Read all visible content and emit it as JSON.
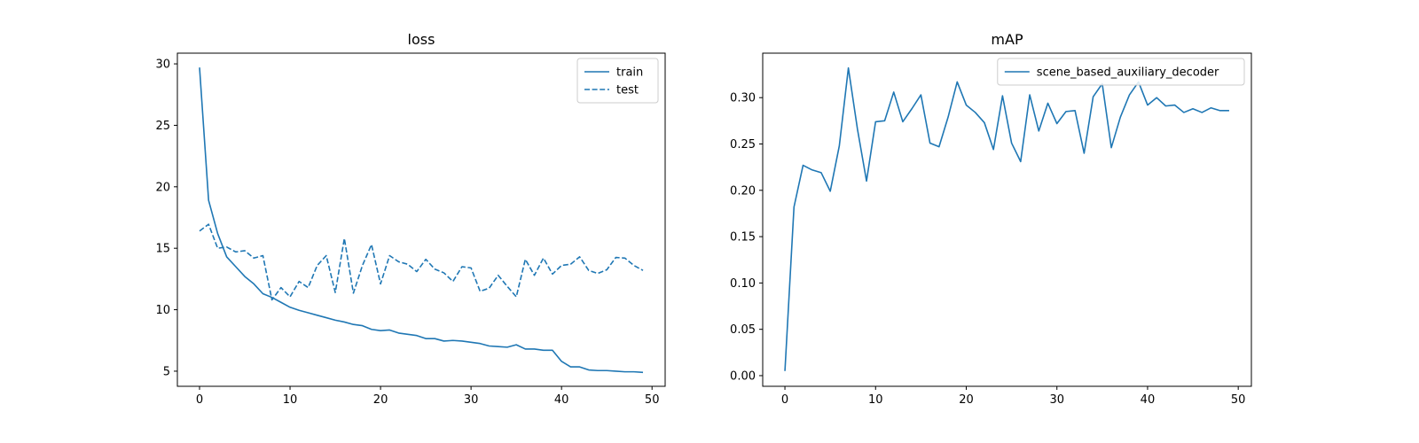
{
  "chart_data": [
    {
      "type": "line",
      "title": "loss",
      "xlabel": "",
      "ylabel": "",
      "xlim": [
        -2.45,
        51.45
      ],
      "ylim": [
        3.77,
        30.87
      ],
      "xticks": [
        0,
        10,
        20,
        30,
        40,
        50
      ],
      "yticks": [
        5,
        10,
        15,
        20,
        25,
        30
      ],
      "grid": false,
      "legend_position": "top-right",
      "series": [
        {
          "name": "train",
          "style": "solid",
          "color": "#1f77b4",
          "x": [
            0,
            1,
            2,
            3,
            4,
            5,
            6,
            7,
            8,
            9,
            10,
            11,
            12,
            13,
            14,
            15,
            16,
            17,
            18,
            19,
            20,
            21,
            22,
            23,
            24,
            25,
            26,
            27,
            28,
            29,
            30,
            31,
            32,
            33,
            34,
            35,
            36,
            37,
            38,
            39,
            40,
            41,
            42,
            43,
            44,
            45,
            46,
            47,
            48,
            49
          ],
          "y": [
            29.7,
            18.9,
            16.2,
            14.3,
            13.5,
            12.7,
            12.1,
            11.3,
            11.0,
            10.6,
            10.2,
            9.95,
            9.75,
            9.55,
            9.35,
            9.15,
            9.0,
            8.8,
            8.7,
            8.4,
            8.3,
            8.35,
            8.1,
            8.0,
            7.9,
            7.65,
            7.65,
            7.45,
            7.5,
            7.45,
            7.35,
            7.25,
            7.05,
            7.0,
            6.95,
            7.15,
            6.8,
            6.8,
            6.7,
            6.7,
            5.8,
            5.35,
            5.35,
            5.1,
            5.05,
            5.05,
            5.0,
            4.95,
            4.95,
            4.9
          ]
        },
        {
          "name": "test",
          "style": "dashed",
          "color": "#1f77b4",
          "x": [
            0,
            1,
            2,
            3,
            4,
            5,
            6,
            7,
            8,
            9,
            10,
            11,
            12,
            13,
            14,
            15,
            16,
            17,
            18,
            19,
            20,
            21,
            22,
            23,
            24,
            25,
            26,
            27,
            28,
            29,
            30,
            31,
            32,
            33,
            34,
            35,
            36,
            37,
            38,
            39,
            40,
            41,
            42,
            43,
            44,
            45,
            46,
            47,
            48,
            49
          ],
          "y": [
            16.4,
            16.95,
            15.0,
            15.1,
            14.7,
            14.8,
            14.2,
            14.4,
            10.8,
            11.8,
            11.05,
            12.3,
            11.8,
            13.6,
            14.4,
            11.4,
            15.8,
            11.35,
            13.6,
            15.3,
            12.1,
            14.4,
            13.9,
            13.7,
            13.1,
            14.1,
            13.3,
            13.0,
            12.3,
            13.5,
            13.4,
            11.5,
            11.75,
            12.8,
            11.9,
            11.05,
            14.1,
            12.8,
            14.2,
            12.9,
            13.6,
            13.7,
            14.3,
            13.2,
            12.95,
            13.25,
            14.25,
            14.2,
            13.6,
            13.2
          ]
        }
      ]
    },
    {
      "type": "line",
      "title": "mAP",
      "xlabel": "",
      "ylabel": "",
      "xlim": [
        -2.45,
        51.45
      ],
      "ylim": [
        -0.0115,
        0.348
      ],
      "xticks": [
        0,
        10,
        20,
        30,
        40,
        50
      ],
      "yticks": [
        0.0,
        0.05,
        0.1,
        0.15,
        0.2,
        0.25,
        0.3
      ],
      "ytick_labels": [
        "0.00",
        "0.05",
        "0.10",
        "0.15",
        "0.20",
        "0.25",
        "0.30"
      ],
      "grid": false,
      "legend_position": "top-right",
      "series": [
        {
          "name": "scene_based_auxiliary_decoder",
          "style": "solid",
          "color": "#1f77b4",
          "x": [
            0,
            1,
            2,
            3,
            4,
            5,
            6,
            7,
            8,
            9,
            10,
            11,
            12,
            13,
            14,
            15,
            16,
            17,
            18,
            19,
            20,
            21,
            22,
            23,
            24,
            25,
            26,
            27,
            28,
            29,
            30,
            31,
            32,
            33,
            34,
            35,
            36,
            37,
            38,
            39,
            40,
            41,
            42,
            43,
            44,
            45,
            46,
            47,
            48,
            49
          ],
          "y": [
            0.005,
            0.182,
            0.227,
            0.222,
            0.219,
            0.199,
            0.248,
            0.332,
            0.266,
            0.21,
            0.274,
            0.275,
            0.306,
            0.274,
            0.288,
            0.303,
            0.251,
            0.247,
            0.279,
            0.317,
            0.292,
            0.284,
            0.273,
            0.244,
            0.302,
            0.251,
            0.231,
            0.303,
            0.264,
            0.294,
            0.272,
            0.285,
            0.286,
            0.24,
            0.301,
            0.315,
            0.246,
            0.279,
            0.303,
            0.317,
            0.292,
            0.3,
            0.291,
            0.292,
            0.284,
            0.288,
            0.284,
            0.289,
            0.286,
            0.286
          ]
        }
      ]
    }
  ]
}
